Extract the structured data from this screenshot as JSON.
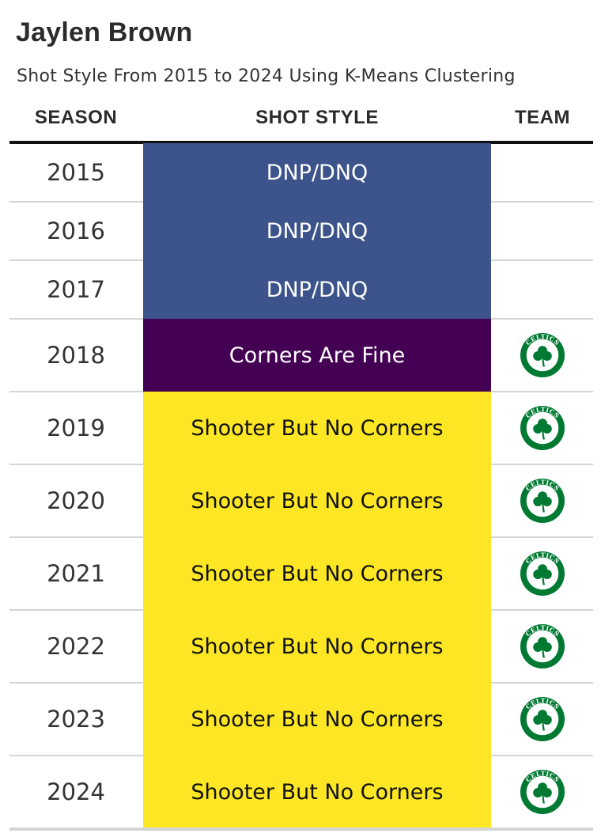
{
  "title": "Jaylen Brown",
  "subtitle": "Shot Style From 2015 to 2024 Using K-Means Clustering",
  "columns": {
    "season": "SEASON",
    "shot_style": "SHOT STYLE",
    "team": "TEAM"
  },
  "colors": {
    "DNP/DNQ": {
      "bg": "#3c548b",
      "fg": "#ffffff"
    },
    "Corners Are Fine": {
      "bg": "#440154",
      "fg": "#ffffff"
    },
    "Shooter But No Corners": {
      "bg": "#fde725",
      "fg": "#111111"
    },
    "celtics_green": "#007a33"
  },
  "logo_text": "CELTICS",
  "chart_data": {
    "type": "table",
    "title": "Jaylen Brown",
    "subtitle": "Shot Style From 2015 to 2024 Using K-Means Clustering",
    "columns": [
      "SEASON",
      "SHOT STYLE",
      "TEAM"
    ],
    "rows": [
      {
        "season": "2015",
        "shot_style": "DNP/DNQ",
        "team_logo": ""
      },
      {
        "season": "2016",
        "shot_style": "DNP/DNQ",
        "team_logo": ""
      },
      {
        "season": "2017",
        "shot_style": "DNP/DNQ",
        "team_logo": ""
      },
      {
        "season": "2018",
        "shot_style": "Corners Are Fine",
        "team_logo": "celtics-logo-icon"
      },
      {
        "season": "2019",
        "shot_style": "Shooter But No Corners",
        "team_logo": "celtics-logo-icon"
      },
      {
        "season": "2020",
        "shot_style": "Shooter But No Corners",
        "team_logo": "celtics-logo-icon"
      },
      {
        "season": "2021",
        "shot_style": "Shooter But No Corners",
        "team_logo": "celtics-logo-icon"
      },
      {
        "season": "2022",
        "shot_style": "Shooter But No Corners",
        "team_logo": "celtics-logo-icon"
      },
      {
        "season": "2023",
        "shot_style": "Shooter But No Corners",
        "team_logo": "celtics-logo-icon"
      },
      {
        "season": "2024",
        "shot_style": "Shooter But No Corners",
        "team_logo": "celtics-logo-icon"
      }
    ]
  }
}
